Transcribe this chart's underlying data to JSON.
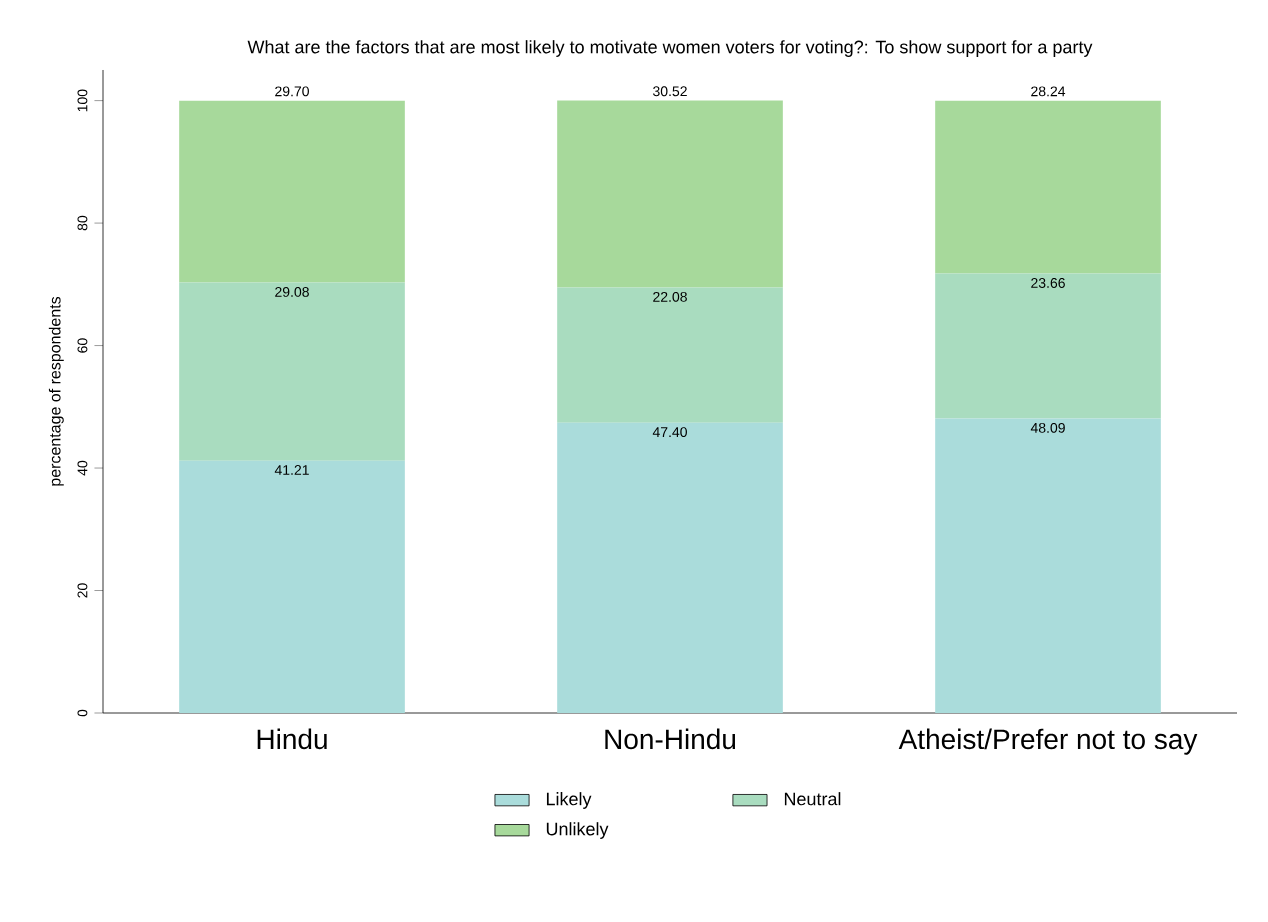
{
  "chart_data": {
    "type": "bar",
    "stacked": true,
    "title": "What are the factors that are most likely to motivate women voters for voting?: To show support for a party",
    "ylabel": "percentage of respondents",
    "categories": [
      "Hindu",
      "Non-Hindu",
      "Atheist/Prefer not to say"
    ],
    "series": [
      {
        "name": "Likely",
        "color": "#aadcdb",
        "values": [
          41.21,
          47.4,
          48.09
        ],
        "value_labels": [
          "41.21",
          "47.40",
          "48.09"
        ]
      },
      {
        "name": "Neutral",
        "color": "#a9dcbf",
        "values": [
          29.08,
          22.08,
          23.66
        ],
        "value_labels": [
          "29.08",
          "22.08",
          "23.66"
        ]
      },
      {
        "name": "Unlikely",
        "color": "#a7d99b",
        "values": [
          29.7,
          30.52,
          28.24
        ],
        "value_labels": [
          "29.70",
          "30.52",
          "28.24"
        ]
      }
    ],
    "ylim": [
      0,
      105
    ],
    "yticks": [
      0,
      20,
      40,
      60,
      80,
      100
    ],
    "legend": "bottom"
  }
}
